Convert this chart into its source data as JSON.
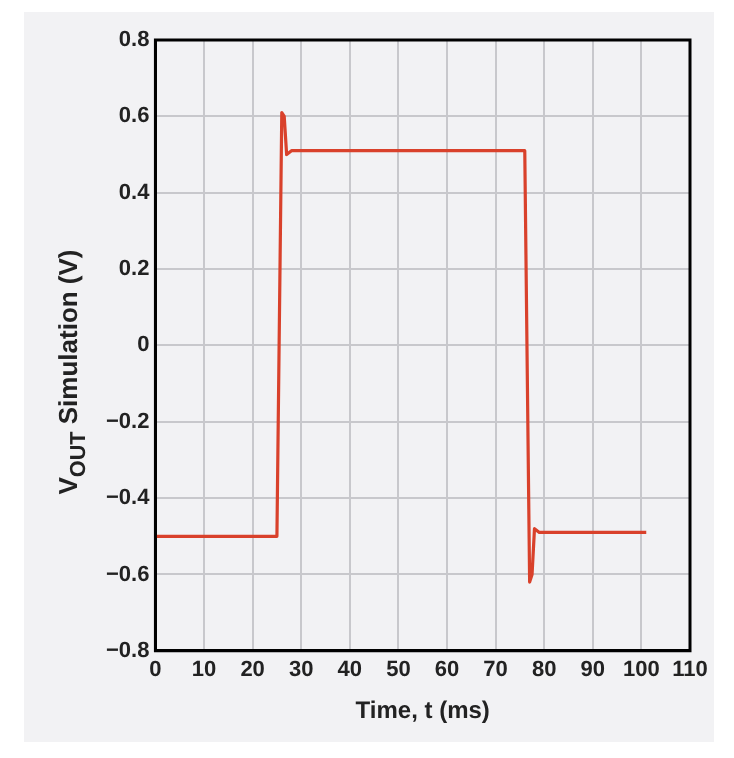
{
  "chart_data": {
    "type": "line",
    "xlabel": "Time, t (ms)",
    "ylabel": "V$_{OUT}$ Simulation (V)",
    "x": [
      0,
      25,
      26,
      26.5,
      27,
      28,
      76,
      77,
      77.5,
      78,
      79,
      101
    ],
    "series": [
      {
        "color": "#d9412b",
        "values": [
          -0.5,
          -0.5,
          0.61,
          0.6,
          0.5,
          0.51,
          0.51,
          -0.62,
          -0.6,
          -0.48,
          -0.49,
          -0.49
        ]
      }
    ],
    "xlim": [
      0,
      110
    ],
    "xticks": [
      0,
      10,
      20,
      30,
      40,
      50,
      60,
      70,
      80,
      90,
      100,
      110
    ],
    "ylim": [
      -0.8,
      0.8
    ],
    "yticks": [
      {
        "value": -0.8,
        "label": "−0.8"
      },
      {
        "value": -0.6,
        "label": "−0.6"
      },
      {
        "value": -0.4,
        "label": "−0.4"
      },
      {
        "value": -0.2,
        "label": "−0.2"
      },
      0,
      0.2,
      0.4,
      0.6,
      0.8
    ],
    "grid": true,
    "legend": false,
    "marker": "none",
    "line_style": "solid"
  }
}
